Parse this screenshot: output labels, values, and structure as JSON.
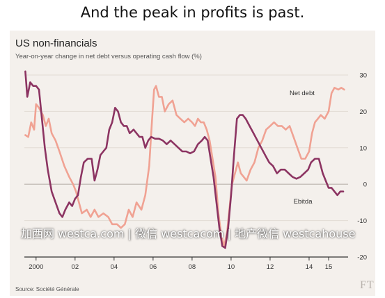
{
  "headline": "And the peak in profits is past.",
  "source": "Source: Société Générale",
  "logo": "FT",
  "watermark": "加西网 westca.com | 微信 westcacom | 地产微信 westcahouse",
  "chart_data": {
    "type": "line",
    "title": "US non-financials",
    "subtitle": "Year-on-year change in net debt versus operating cash flow (%)",
    "xlim": [
      1999.4,
      2016.0
    ],
    "ylim": [
      -20,
      30
    ],
    "y_ticks": [
      30,
      20,
      10,
      0,
      -10,
      -20
    ],
    "y_axis_side": "right",
    "x_ticks": [
      {
        "label": "2000",
        "year": 2000
      },
      {
        "label": "02",
        "year": 2002
      },
      {
        "label": "04",
        "year": 2004
      },
      {
        "label": "06",
        "year": 2006
      },
      {
        "label": "08",
        "year": 2008
      },
      {
        "label": "10",
        "year": 2010
      },
      {
        "label": "12",
        "year": 2012
      },
      {
        "label": "14",
        "year": 2014
      },
      {
        "label": "15",
        "year": 2015
      }
    ],
    "grid": true,
    "background": "#f4f0ec",
    "series": [
      {
        "name": "Net debt",
        "color": "#f0a293",
        "points": [
          [
            1999.45,
            13.5
          ],
          [
            1999.6,
            13
          ],
          [
            1999.75,
            17
          ],
          [
            1999.9,
            15
          ],
          [
            2000.0,
            22
          ],
          [
            2000.15,
            21
          ],
          [
            2000.35,
            19
          ],
          [
            2000.5,
            16
          ],
          [
            2000.65,
            18
          ],
          [
            2000.8,
            14
          ],
          [
            2001.0,
            12
          ],
          [
            2001.2,
            9
          ],
          [
            2001.45,
            5
          ],
          [
            2001.7,
            2
          ],
          [
            2001.9,
            0
          ],
          [
            2002.05,
            -2
          ],
          [
            2002.2,
            -5
          ],
          [
            2002.35,
            -8
          ],
          [
            2002.6,
            -7
          ],
          [
            2002.8,
            -9
          ],
          [
            2003.0,
            -7
          ],
          [
            2003.2,
            -9
          ],
          [
            2003.45,
            -8
          ],
          [
            2003.7,
            -9
          ],
          [
            2003.9,
            -11
          ],
          [
            2004.15,
            -11
          ],
          [
            2004.35,
            -12
          ],
          [
            2004.55,
            -11
          ],
          [
            2004.75,
            -7
          ],
          [
            2004.95,
            -9
          ],
          [
            2005.15,
            -5
          ],
          [
            2005.4,
            -7
          ],
          [
            2005.6,
            -3
          ],
          [
            2005.8,
            5
          ],
          [
            2005.95,
            18
          ],
          [
            2006.05,
            26
          ],
          [
            2006.15,
            27
          ],
          [
            2006.3,
            24
          ],
          [
            2006.45,
            24
          ],
          [
            2006.6,
            20
          ],
          [
            2006.8,
            22
          ],
          [
            2007.0,
            23
          ],
          [
            2007.2,
            19
          ],
          [
            2007.4,
            18
          ],
          [
            2007.6,
            17
          ],
          [
            2007.8,
            18
          ],
          [
            2008.0,
            17
          ],
          [
            2008.15,
            16
          ],
          [
            2008.3,
            18
          ],
          [
            2008.45,
            17
          ],
          [
            2008.6,
            17
          ],
          [
            2008.75,
            15
          ],
          [
            2008.9,
            12
          ],
          [
            2009.05,
            7
          ],
          [
            2009.2,
            2
          ],
          [
            2009.35,
            -8
          ],
          [
            2009.5,
            -14
          ],
          [
            2009.65,
            -17
          ],
          [
            2009.8,
            -13
          ],
          [
            2009.95,
            -5
          ],
          [
            2010.05,
            0
          ],
          [
            2010.2,
            3
          ],
          [
            2010.35,
            6
          ],
          [
            2010.5,
            3
          ],
          [
            2010.65,
            2
          ],
          [
            2010.8,
            1
          ],
          [
            2011.0,
            4
          ],
          [
            2011.2,
            6
          ],
          [
            2011.4,
            10
          ],
          [
            2011.6,
            12
          ],
          [
            2011.8,
            15
          ],
          [
            2012.0,
            16
          ],
          [
            2012.2,
            17
          ],
          [
            2012.4,
            16
          ],
          [
            2012.6,
            16
          ],
          [
            2012.8,
            15
          ],
          [
            2013.0,
            16
          ],
          [
            2013.2,
            13
          ],
          [
            2013.4,
            10
          ],
          [
            2013.6,
            7
          ],
          [
            2013.8,
            7
          ],
          [
            2014.0,
            9
          ],
          [
            2014.15,
            14
          ],
          [
            2014.3,
            17
          ],
          [
            2014.45,
            18
          ],
          [
            2014.6,
            19
          ],
          [
            2014.8,
            18
          ],
          [
            2015.0,
            20
          ],
          [
            2015.15,
            25
          ],
          [
            2015.3,
            26.5
          ],
          [
            2015.5,
            26
          ],
          [
            2015.65,
            26.5
          ],
          [
            2015.8,
            26
          ]
        ]
      },
      {
        "name": "Ebitda",
        "color": "#8c3462",
        "points": [
          [
            1999.45,
            31
          ],
          [
            1999.55,
            24
          ],
          [
            1999.7,
            28
          ],
          [
            1999.85,
            27
          ],
          [
            2000.0,
            27
          ],
          [
            2000.15,
            26
          ],
          [
            2000.3,
            18
          ],
          [
            2000.45,
            10
          ],
          [
            2000.6,
            4
          ],
          [
            2000.8,
            -2
          ],
          [
            2001.0,
            -5
          ],
          [
            2001.2,
            -8
          ],
          [
            2001.35,
            -9
          ],
          [
            2001.5,
            -7
          ],
          [
            2001.7,
            -5
          ],
          [
            2001.85,
            -6
          ],
          [
            2002.0,
            -4
          ],
          [
            2002.15,
            -3
          ],
          [
            2002.3,
            2
          ],
          [
            2002.45,
            6
          ],
          [
            2002.65,
            7
          ],
          [
            2002.85,
            7
          ],
          [
            2003.0,
            1
          ],
          [
            2003.15,
            4
          ],
          [
            2003.3,
            8
          ],
          [
            2003.45,
            9
          ],
          [
            2003.6,
            10
          ],
          [
            2003.75,
            15
          ],
          [
            2003.9,
            17
          ],
          [
            2004.05,
            21
          ],
          [
            2004.2,
            20
          ],
          [
            2004.35,
            17
          ],
          [
            2004.5,
            16
          ],
          [
            2004.65,
            16
          ],
          [
            2004.8,
            14
          ],
          [
            2005.0,
            15
          ],
          [
            2005.15,
            14
          ],
          [
            2005.3,
            13
          ],
          [
            2005.45,
            13
          ],
          [
            2005.6,
            10
          ],
          [
            2005.75,
            12
          ],
          [
            2005.9,
            13
          ],
          [
            2006.1,
            12.5
          ],
          [
            2006.3,
            12.5
          ],
          [
            2006.5,
            12
          ],
          [
            2006.7,
            11
          ],
          [
            2006.9,
            12
          ],
          [
            2007.1,
            11
          ],
          [
            2007.3,
            10
          ],
          [
            2007.5,
            9
          ],
          [
            2007.7,
            9
          ],
          [
            2007.9,
            8.5
          ],
          [
            2008.1,
            9
          ],
          [
            2008.3,
            11
          ],
          [
            2008.5,
            12
          ],
          [
            2008.65,
            13
          ],
          [
            2008.8,
            12
          ],
          [
            2008.95,
            7
          ],
          [
            2009.1,
            2
          ],
          [
            2009.25,
            -5
          ],
          [
            2009.4,
            -12
          ],
          [
            2009.55,
            -17
          ],
          [
            2009.7,
            -17.5
          ],
          [
            2009.85,
            -12
          ],
          [
            2010.0,
            -3
          ],
          [
            2010.15,
            8
          ],
          [
            2010.3,
            18
          ],
          [
            2010.45,
            19
          ],
          [
            2010.6,
            19
          ],
          [
            2010.75,
            18
          ],
          [
            2010.95,
            16
          ],
          [
            2011.15,
            14
          ],
          [
            2011.35,
            12
          ],
          [
            2011.55,
            10
          ],
          [
            2011.75,
            8
          ],
          [
            2011.95,
            6
          ],
          [
            2012.15,
            5
          ],
          [
            2012.35,
            3
          ],
          [
            2012.55,
            4
          ],
          [
            2012.75,
            4
          ],
          [
            2012.95,
            3
          ],
          [
            2013.15,
            2
          ],
          [
            2013.35,
            1.5
          ],
          [
            2013.55,
            2
          ],
          [
            2013.75,
            3
          ],
          [
            2013.95,
            4
          ],
          [
            2014.1,
            6
          ],
          [
            2014.3,
            7
          ],
          [
            2014.5,
            7
          ],
          [
            2014.7,
            3
          ],
          [
            2014.85,
            1
          ],
          [
            2015.0,
            -1
          ],
          [
            2015.15,
            -1
          ],
          [
            2015.3,
            -2
          ],
          [
            2015.45,
            -3
          ],
          [
            2015.6,
            -2
          ],
          [
            2015.75,
            -2
          ]
        ]
      }
    ],
    "annotations": [
      {
        "text": "Net debt",
        "year": 2013.0,
        "value": 24.5
      },
      {
        "text": "Ebitda",
        "year": 2013.2,
        "value": -5.3
      }
    ]
  }
}
